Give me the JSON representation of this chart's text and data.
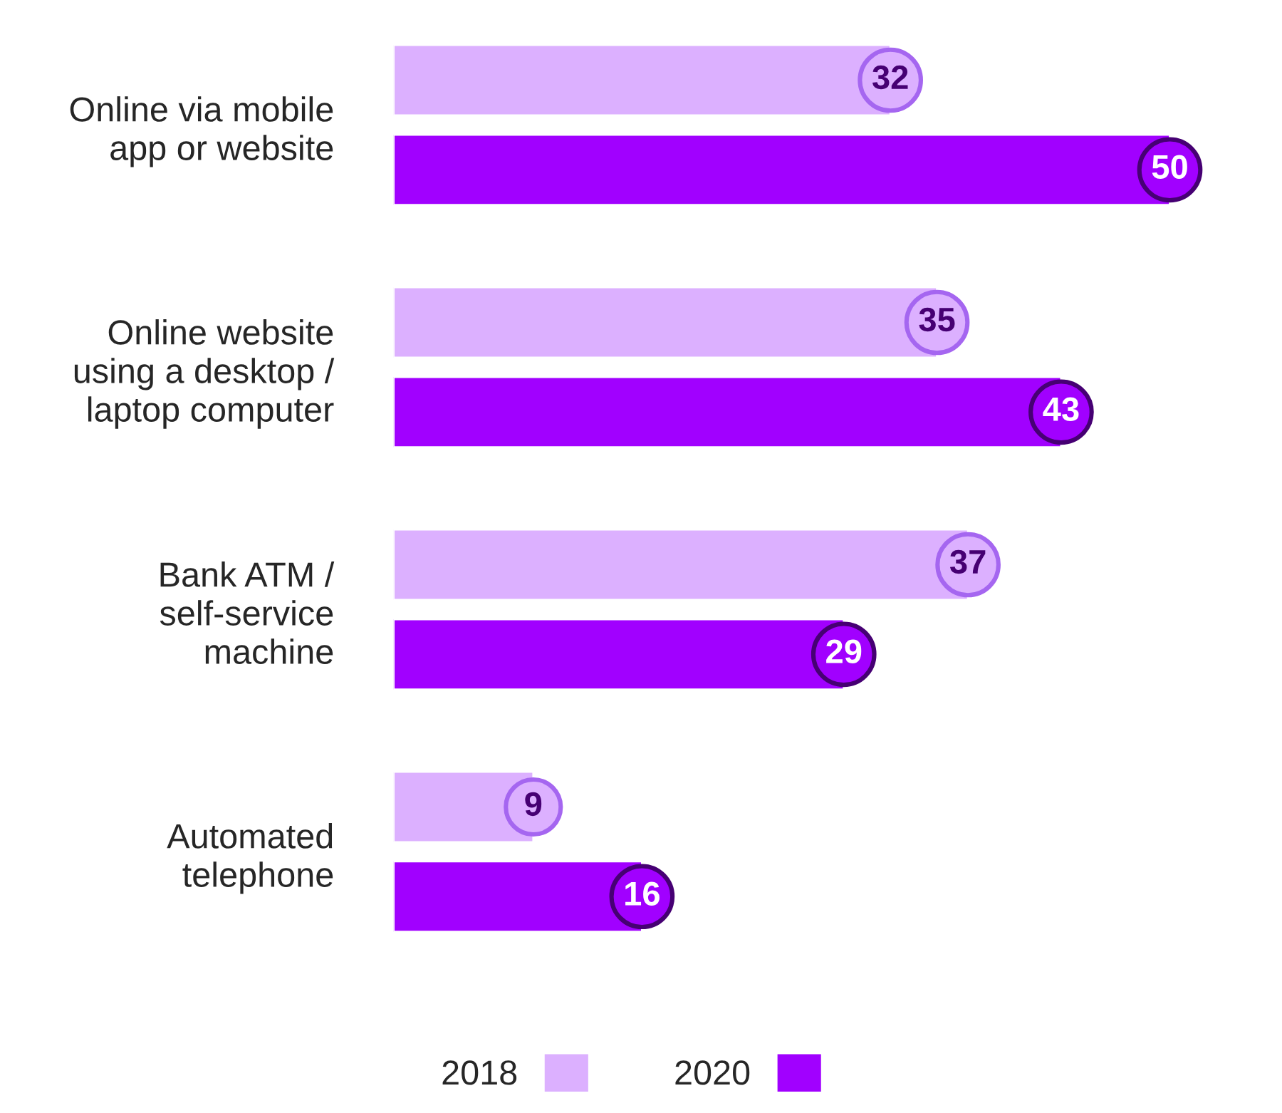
{
  "chart_data": {
    "type": "bar",
    "orientation": "horizontal",
    "categories": [
      "Online via mobile\napp or website",
      "Online website\nusing a desktop /\nlaptop computer",
      "Bank ATM /\nself-service\nmachine",
      "Automated\ntelephone"
    ],
    "series": [
      {
        "name": "2018",
        "color": "#dcb0ff",
        "values": [
          32,
          35,
          37,
          9
        ]
      },
      {
        "name": "2020",
        "color": "#a100ff",
        "values": [
          50,
          43,
          29,
          16
        ]
      }
    ],
    "data_labels": true,
    "legend": "bottom",
    "grid": false
  }
}
